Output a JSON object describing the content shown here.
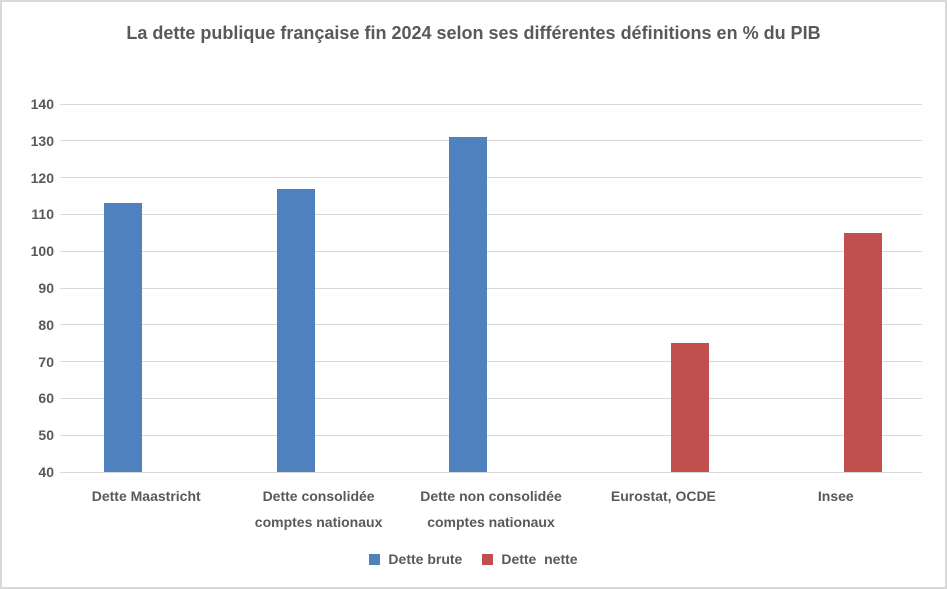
{
  "chart_data": {
    "type": "bar",
    "title": "La dette publique française fin 2024 selon ses différentes définitions en % du PIB",
    "categories": [
      "Dette Maastricht",
      "Dette consolidée comptes nationaux",
      "Dette non consolidée comptes nationaux",
      "Eurostat, OCDE",
      "Insee"
    ],
    "series": [
      {
        "name": "Dette brute",
        "color": "#4e81bd",
        "values": [
          113,
          117,
          131,
          null,
          null
        ]
      },
      {
        "name": "Dette  nette",
        "color": "#c0504d",
        "values": [
          null,
          null,
          null,
          75,
          105
        ]
      }
    ],
    "ylim": [
      40,
      140
    ],
    "ytick_step": 10,
    "yticks": [
      40,
      50,
      60,
      70,
      80,
      90,
      100,
      110,
      120,
      130,
      140
    ],
    "xlabel": "",
    "ylabel": "",
    "grid": true,
    "legend_position": "bottom",
    "colors": {
      "text": "#595959",
      "gridline": "#d9d9d9",
      "background": "#ffffff",
      "border": "#d9d9d9"
    }
  }
}
